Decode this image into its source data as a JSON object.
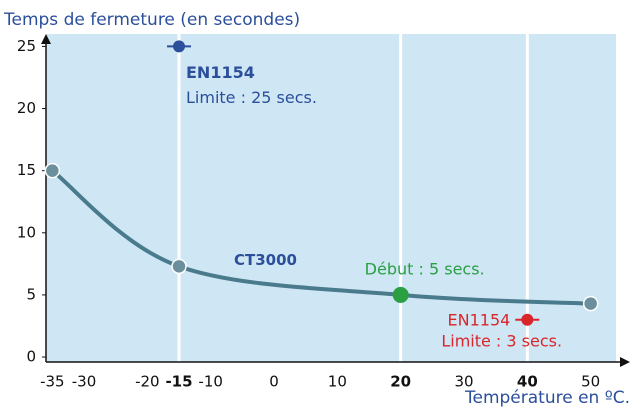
{
  "chart_data": {
    "type": "line",
    "title": "Temps de fermeture (en secondes)",
    "x_label": "Température en ºC.",
    "xlim": [
      -36,
      54
    ],
    "ylim": [
      -0.4,
      26
    ],
    "xticks": [
      -35,
      -30,
      -20,
      -15,
      -10,
      0,
      10,
      20,
      30,
      40,
      50
    ],
    "highlighted_xticks": [
      -15,
      20,
      40
    ],
    "yticks": [
      0,
      5,
      10,
      15,
      20,
      25
    ],
    "background": "#cfe6f5",
    "series": [
      {
        "name": "CT3000",
        "color": "#4a7b8c",
        "x": [
          -35,
          -15,
          20,
          50
        ],
        "values": [
          15,
          7.3,
          5,
          4.3
        ]
      }
    ],
    "markers": [
      {
        "x": -15,
        "y": 25,
        "color": "#2b4f9b",
        "labels": [
          "EN1154",
          "Limite : 25 secs."
        ]
      },
      {
        "x": 20,
        "y": 5,
        "color": "#2aa043",
        "labels": [
          "Début : 5 secs."
        ]
      },
      {
        "x": 40,
        "y": 3,
        "color": "#d8262b",
        "labels": [
          "EN1154",
          "Limite : 3 secs."
        ]
      }
    ]
  }
}
